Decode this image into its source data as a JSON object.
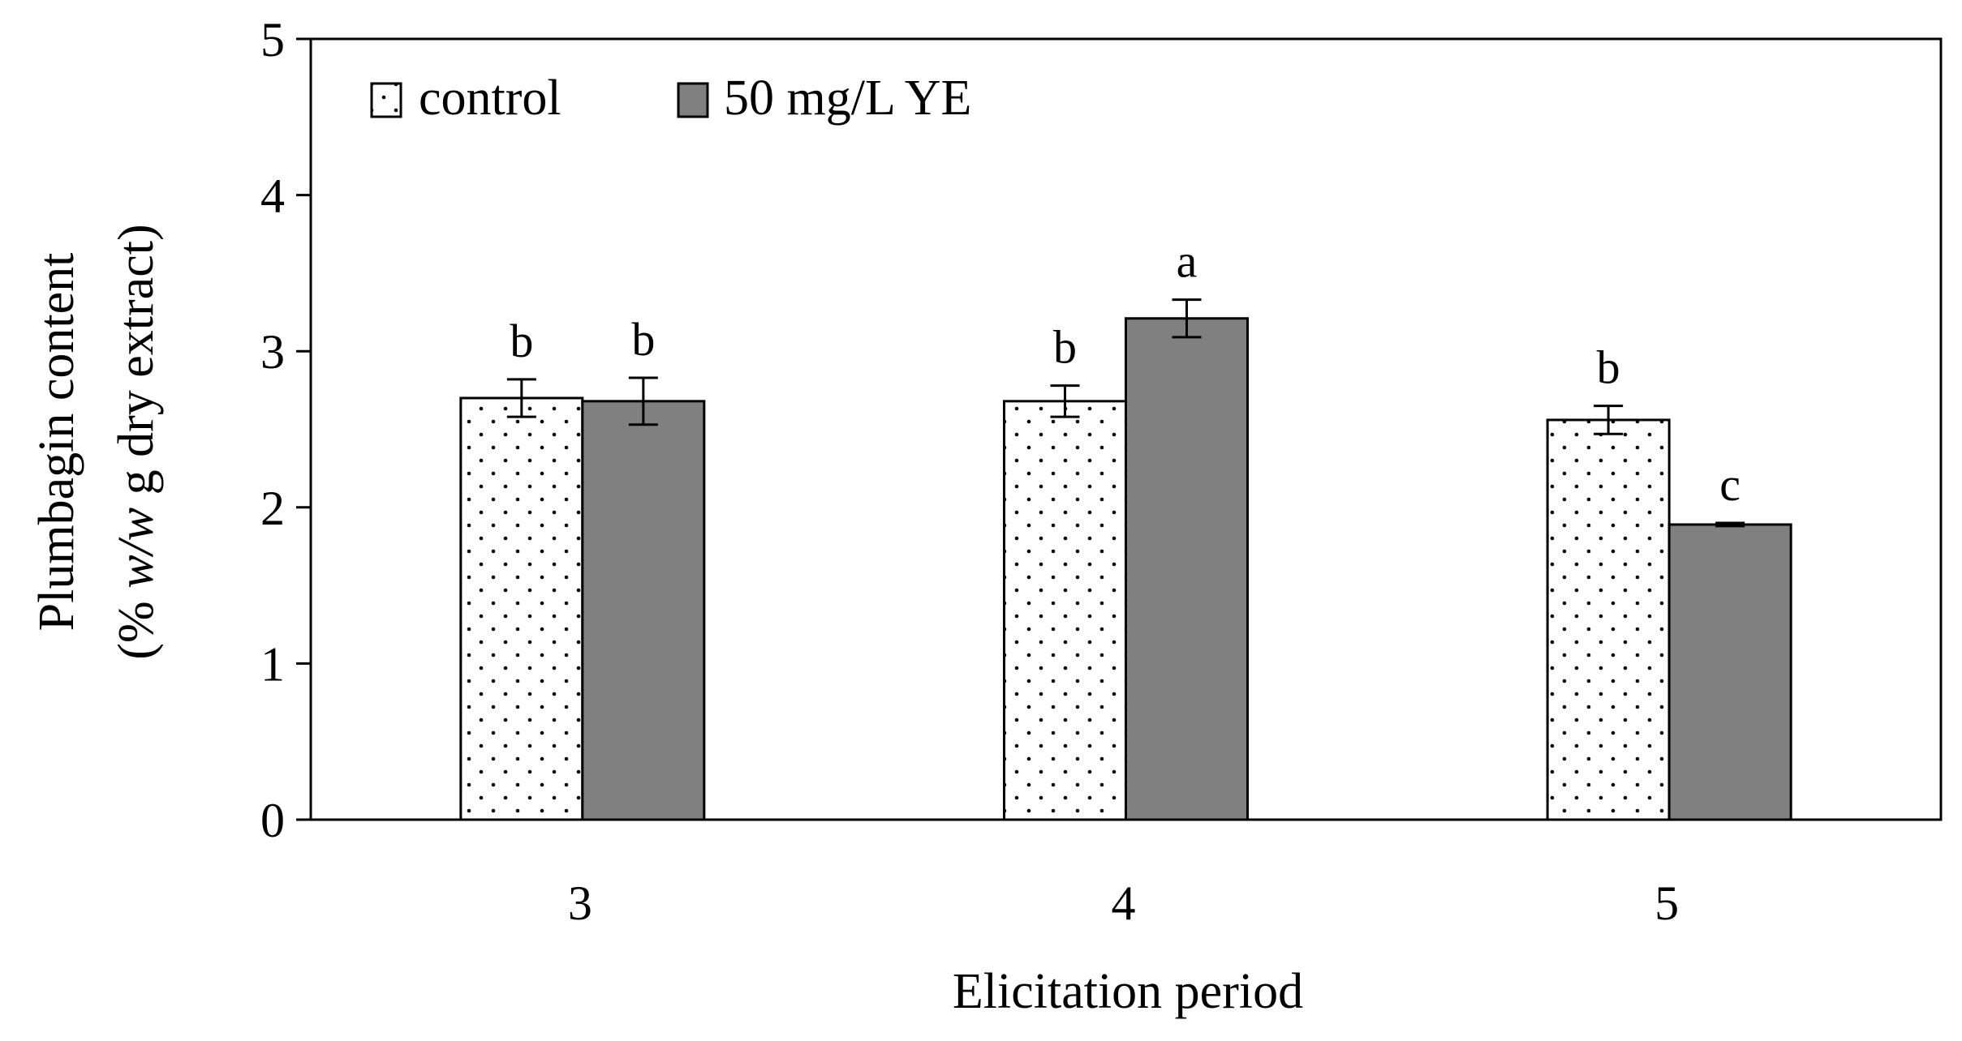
{
  "chart_data": {
    "type": "bar",
    "title": "",
    "xlabel": "Elicitation period",
    "ylabel_line1": "Plumbagin content",
    "ylabel_line2_prefix": "(% ",
    "ylabel_line2_italic": "w/w",
    "ylabel_line2_suffix": " g dry extract)",
    "ylim": [
      0,
      5
    ],
    "yticks": [
      "0",
      "1",
      "2",
      "3",
      "4",
      "5"
    ],
    "categories": [
      "3",
      "4",
      "5"
    ],
    "legend_position": "top-left",
    "series": [
      {
        "name": "control",
        "pattern": "dots",
        "fill": "#ffffff",
        "values": [
          2.7,
          2.68,
          2.56
        ],
        "errors": [
          0.12,
          0.1,
          0.09
        ],
        "letters": [
          "b",
          "b",
          "b"
        ]
      },
      {
        "name": "50 mg/L YE",
        "pattern": "solid",
        "fill": "#808080",
        "values": [
          2.68,
          3.21,
          1.89
        ],
        "errors": [
          0.15,
          0.12,
          0.01
        ],
        "letters": [
          "b",
          "a",
          "c"
        ]
      }
    ]
  }
}
